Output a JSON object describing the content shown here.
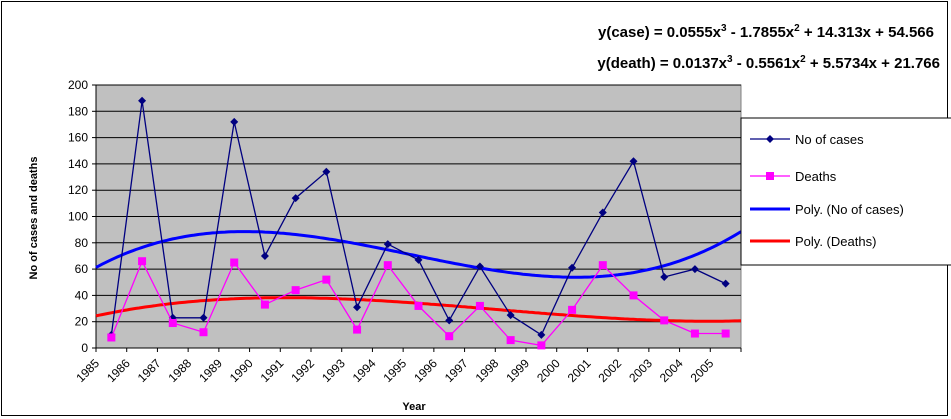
{
  "chart_data": {
    "type": "line",
    "xlabel": "Year",
    "ylabel": "No of cases and deaths",
    "ylim": [
      0,
      200
    ],
    "y_ticks": [
      "0",
      "20",
      "40",
      "60",
      "80",
      "100",
      "120",
      "140",
      "160",
      "180",
      "200"
    ],
    "x_tick_labels": [
      "1985",
      "1986",
      "1987",
      "1988",
      "1989",
      "1990",
      "1991",
      "1992",
      "1993",
      "1994",
      "1995",
      "1996",
      "1997",
      "1998",
      "1999",
      "2000",
      "2001",
      "2002",
      "2003",
      "2004",
      "2005"
    ],
    "points_x": [
      1,
      2,
      3,
      4,
      5,
      6,
      7,
      8,
      9,
      10,
      11,
      12,
      13,
      14,
      15,
      16,
      17,
      18,
      19,
      20,
      21
    ],
    "grid": true,
    "legend_position": "right",
    "series": [
      {
        "name": "No of cases",
        "values": [
          10,
          188,
          23,
          23,
          172,
          70,
          114,
          134,
          31,
          79,
          67,
          21,
          62,
          25,
          10,
          61,
          103,
          142,
          54,
          60,
          49
        ],
        "color": "#000080",
        "marker": "diamond"
      },
      {
        "name": "Deaths",
        "values": [
          8,
          66,
          19,
          12,
          65,
          33,
          44,
          52,
          14,
          63,
          32,
          9,
          32,
          6,
          2,
          29,
          63,
          40,
          21,
          11,
          11
        ],
        "color": "#ff00ff",
        "marker": "square"
      }
    ],
    "trendlines": [
      {
        "name": "Poly. (No of cases)",
        "type": "polynomial",
        "order": 3,
        "coefficients": [
          0.0555,
          -1.7855,
          14.313,
          54.566
        ],
        "color": "#0000ff"
      },
      {
        "name": "Poly. (Deaths)",
        "type": "polynomial",
        "order": 3,
        "coefficients": [
          0.0137,
          -0.5561,
          5.5734,
          21.766
        ],
        "color": "#ff0000"
      }
    ],
    "annotations": [
      {
        "prefix": "y(case) = 0.0555x",
        "sup1": "3",
        "mid": " - 1.7855x",
        "sup2": "2",
        "suffix": " + 14.313x + 54.566"
      },
      {
        "prefix": "y(death) = 0.0137x",
        "sup1": "3",
        "mid": " - 0.5561x",
        "sup2": "2",
        "suffix": " + 5.5734x + 21.766"
      }
    ]
  }
}
